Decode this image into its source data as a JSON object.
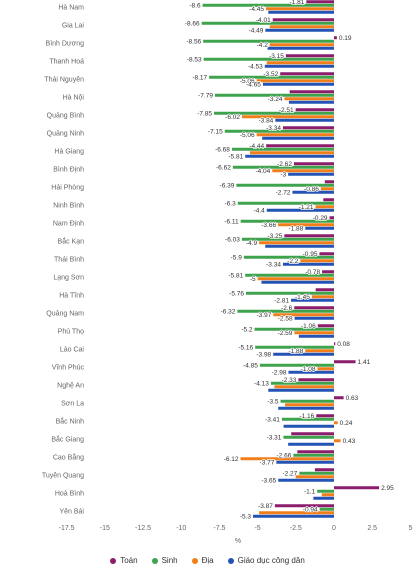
{
  "chart_data": {
    "type": "bar",
    "orientation": "horizontal",
    "categories": [
      "Hà Nam",
      "Gia Lai",
      "Bình Dương",
      "Thanh Hoá",
      "Thái Nguyên",
      "Hà Nội",
      "Quảng Bình",
      "Quảng Ninh",
      "Hà Giang",
      "Bình Định",
      "Hải Phòng",
      "Ninh Bình",
      "Nam Định",
      "Bắc Kạn",
      "Thái Bình",
      "Lạng Sơn",
      "Hà Tĩnh",
      "Quảng Nam",
      "Phú Thọ",
      "Lào Cai",
      "Vĩnh Phúc",
      "Nghệ An",
      "Sơn La",
      "Bắc Ninh",
      "Bắc Giang",
      "Cao Bằng",
      "Tuyên Quang",
      "Hoà Bình",
      "Yên Bái"
    ],
    "series": [
      {
        "name": "Toán",
        "color": "#8c1c6c",
        "values": [
          -1.81,
          -4.01,
          0.19,
          -3.15,
          -3.52,
          -2.9,
          -2.51,
          -3.34,
          -4.44,
          -2.62,
          -0.6,
          -0.7,
          -0.29,
          -3.25,
          -0.95,
          -0.78,
          -1.2,
          -2.6,
          -1.06,
          0.08,
          1.41,
          -2.33,
          0.63,
          -1.16,
          -2.8,
          -2.4,
          -1.25,
          2.95,
          -3.87
        ],
        "data_label_shown": [
          true,
          true,
          true,
          true,
          true,
          false,
          true,
          true,
          true,
          true,
          false,
          false,
          true,
          true,
          true,
          true,
          false,
          true,
          true,
          true,
          true,
          true,
          true,
          true,
          false,
          false,
          false,
          true,
          true
        ]
      },
      {
        "name": "Sinh",
        "color": "#3fa34d",
        "values": [
          -8.6,
          -8.66,
          -8.56,
          -8.53,
          -8.17,
          -7.79,
          -7.85,
          -7.15,
          -6.68,
          -6.62,
          -6.39,
          -6.3,
          -6.11,
          -6.03,
          -5.9,
          -5.81,
          -5.76,
          -6.32,
          -5.2,
          -5.16,
          -4.85,
          -4.13,
          -3.5,
          -3.41,
          -3.31,
          -2.66,
          -2.27,
          -1.1,
          -0.94
        ],
        "data_label_shown": [
          true,
          true,
          true,
          true,
          true,
          true,
          true,
          true,
          true,
          true,
          true,
          true,
          true,
          true,
          true,
          true,
          true,
          true,
          true,
          true,
          true,
          true,
          true,
          true,
          true,
          true,
          true,
          true,
          true
        ]
      },
      {
        "name": "Địa",
        "color": "#f07f1b",
        "values": [
          -4.45,
          -4.2,
          -4.2,
          -4.4,
          -5.06,
          -3.24,
          -6.02,
          -5.06,
          -5.5,
          -4.04,
          -0.86,
          -1.21,
          -3.66,
          -4.9,
          -2.2,
          -5,
          -1.45,
          -3.97,
          -2.59,
          -1.88,
          -1.08,
          -3.9,
          -3.2,
          0.24,
          0.43,
          -6.12,
          -2.5,
          -0.8,
          -4.9
        ],
        "data_label_shown": [
          true,
          false,
          true,
          false,
          true,
          true,
          true,
          true,
          false,
          true,
          true,
          true,
          true,
          true,
          true,
          true,
          true,
          true,
          true,
          true,
          true,
          false,
          false,
          true,
          true,
          true,
          false,
          false,
          false
        ]
      },
      {
        "name": "Giáo dục công dân",
        "color": "#2253b5",
        "values": [
          -4.3,
          -4.49,
          -4.35,
          -4.53,
          -4.65,
          -2.95,
          -3.84,
          -4.7,
          -5.81,
          -3,
          -2.72,
          -4.4,
          -1.88,
          -4.5,
          -3.34,
          -4.75,
          -2.81,
          -2.58,
          -2.3,
          -3.98,
          -2.98,
          -4.3,
          -3.65,
          -3.3,
          -3,
          -3.77,
          -3.65,
          -1.35,
          -5.3
        ],
        "data_label_shown": [
          false,
          true,
          false,
          true,
          true,
          false,
          true,
          false,
          true,
          true,
          true,
          true,
          true,
          false,
          true,
          false,
          true,
          true,
          false,
          true,
          true,
          false,
          false,
          false,
          false,
          true,
          true,
          false,
          true
        ]
      }
    ],
    "xlabel": "%",
    "xlim": [
      -17.5,
      5
    ],
    "xticks": [
      -17.5,
      -15,
      -12.5,
      -10,
      -7.5,
      -5,
      -2.5,
      0,
      2.5,
      5
    ],
    "grid": false,
    "legend": "bottom"
  }
}
